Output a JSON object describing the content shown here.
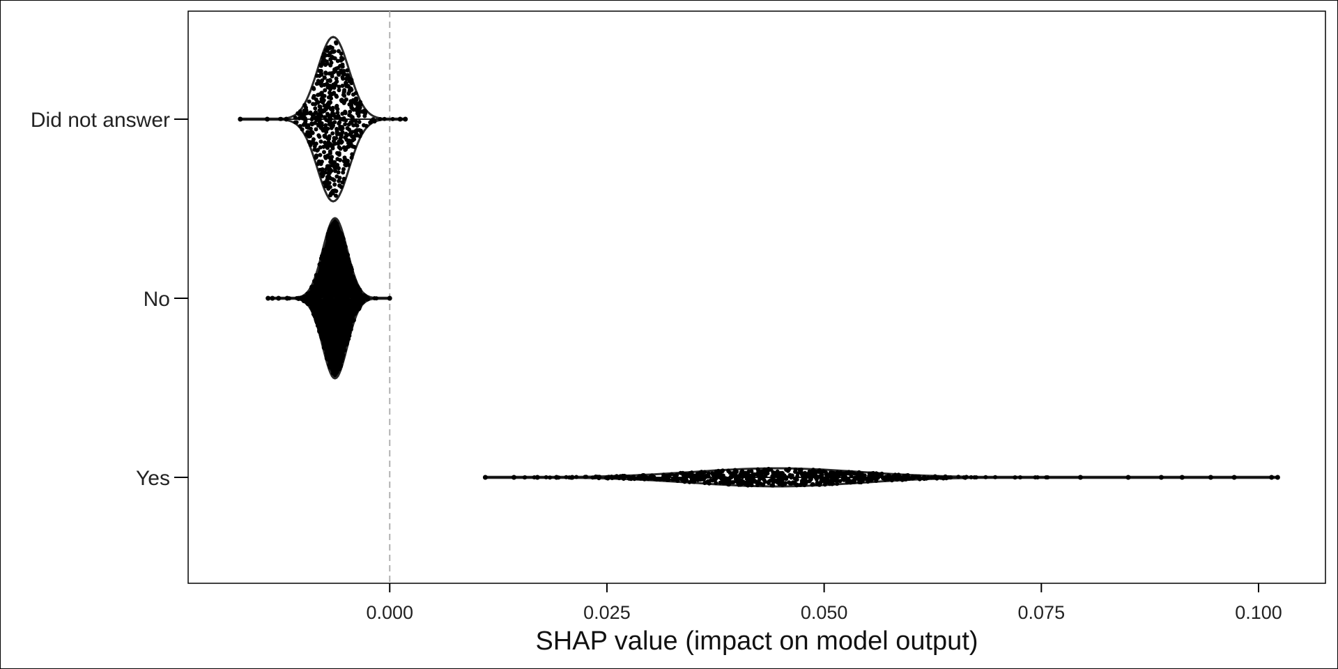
{
  "chart_data": {
    "type": "violin",
    "xlabel": "SHAP value (impact on model output)",
    "ylabel": "",
    "xlim": [
      -0.0232,
      0.1077
    ],
    "xticks": [
      0.0,
      0.025,
      0.05,
      0.075,
      0.1
    ],
    "xtick_labels": [
      "0.000",
      "0.025",
      "0.050",
      "0.075",
      "0.100"
    ],
    "reference_line": {
      "x": 0.0,
      "style": "dashed",
      "color": "#b0b0b0"
    },
    "grid": false,
    "categories": [
      "Did not answer",
      "No",
      "Yes"
    ],
    "series": [
      {
        "category": "Did not answer",
        "min": -0.0172,
        "max": 0.0018,
        "center": -0.0065,
        "spread": 0.0018
      },
      {
        "category": "No",
        "min": -0.014,
        "max": 0.0,
        "center": -0.0063,
        "spread": 0.0014
      },
      {
        "category": "Yes",
        "min": 0.011,
        "max": 0.1022,
        "center": 0.0445,
        "spread": 0.0095
      }
    ],
    "colors": {
      "points": "#000000",
      "outline": "#2a2a2a",
      "axis": "#000000"
    }
  }
}
